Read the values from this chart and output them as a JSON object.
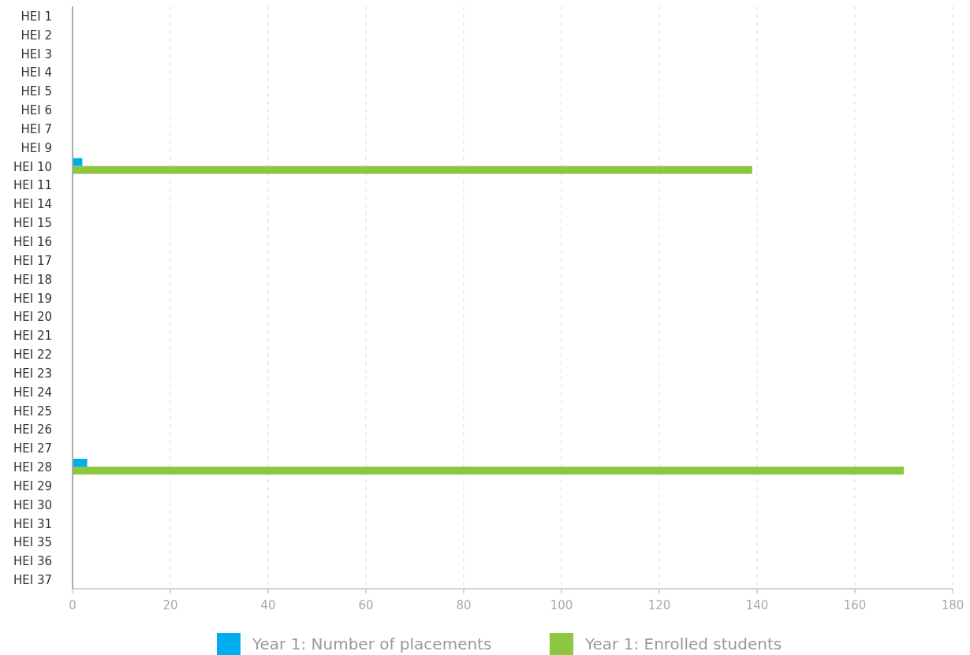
{
  "chart_data": {
    "type": "bar",
    "orientation": "horizontal",
    "categories": [
      "HEI 1",
      "HEI 2",
      "HEI 3",
      "HEI 4",
      "HEI 5",
      "HEI 6",
      "HEI 7",
      "HEI 9",
      "HEI 10",
      "HEI 11",
      "HEI 14",
      "HEI 15",
      "HEI 16",
      "HEI 17",
      "HEI 18",
      "HEI 19",
      "HEI 20",
      "HEI 21",
      "HEI 22",
      "HEI 23",
      "HEI 24",
      "HEI 25",
      "HEI 26",
      "HEI 27",
      "HEI 28",
      "HEI 29",
      "HEI 30",
      "HEI 31",
      "HEI 35",
      "HEI 36",
      "HEI 37"
    ],
    "series": [
      {
        "name": "Year 1: Number of placements",
        "color": "#00aeef",
        "values": [
          null,
          null,
          null,
          null,
          null,
          null,
          null,
          null,
          2,
          null,
          null,
          null,
          null,
          null,
          null,
          null,
          null,
          null,
          null,
          null,
          null,
          null,
          null,
          null,
          3,
          null,
          null,
          null,
          null,
          null,
          null
        ]
      },
      {
        "name": "Year 1: Enrolled students",
        "color": "#8dc63f",
        "values": [
          null,
          null,
          null,
          null,
          null,
          null,
          null,
          null,
          139,
          null,
          null,
          null,
          null,
          null,
          null,
          null,
          null,
          null,
          null,
          null,
          null,
          null,
          null,
          null,
          170,
          null,
          null,
          null,
          null,
          null,
          null
        ]
      }
    ],
    "xlim": [
      0,
      180
    ],
    "xticks": [
      0,
      20,
      40,
      60,
      80,
      100,
      120,
      140,
      160,
      180
    ],
    "grid": "x",
    "legend": "bottom"
  }
}
